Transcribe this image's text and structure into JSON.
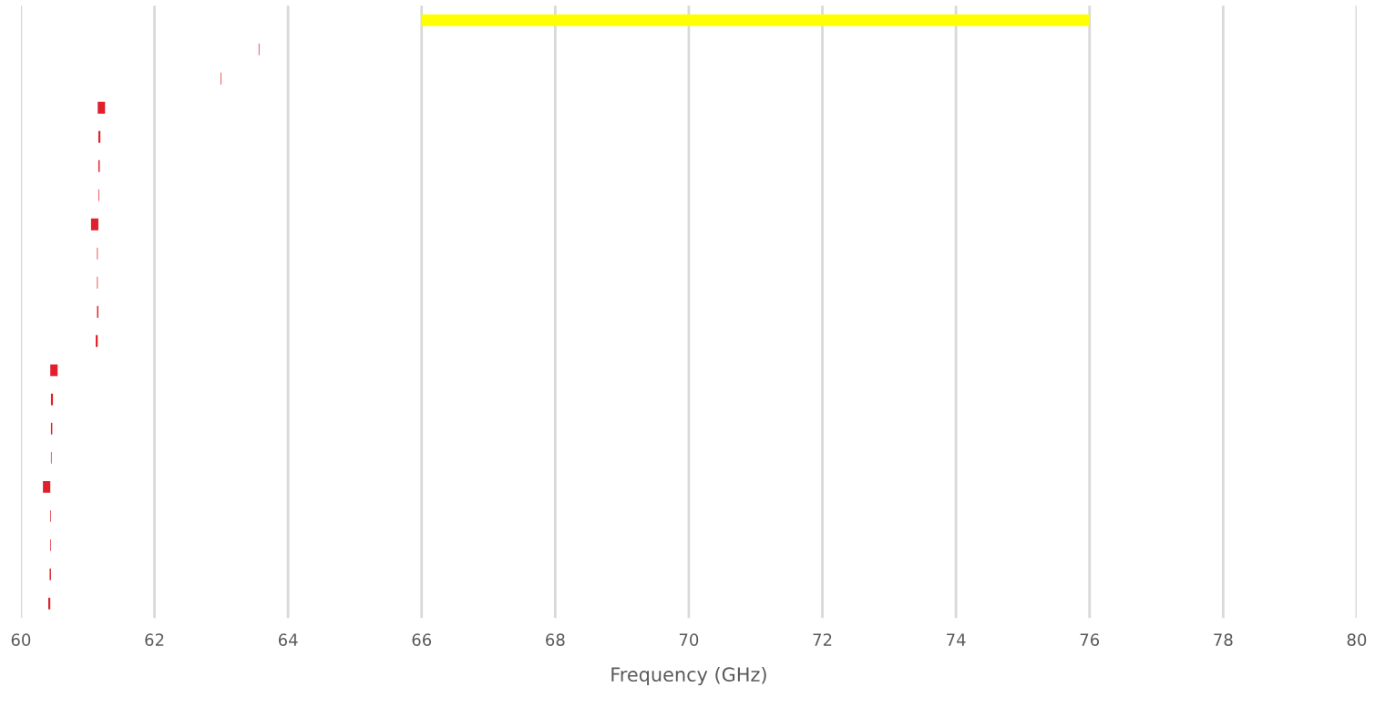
{
  "chart_data": {
    "type": "bar",
    "orientation": "horizontal",
    "xlabel": "Frequency (GHz)",
    "categories": [
      null,
      null,
      null,
      null,
      null,
      null,
      null,
      null,
      null,
      null,
      null,
      null,
      null,
      null,
      null,
      null,
      null,
      null,
      null,
      null,
      null
    ],
    "base": [
      66,
      63.56,
      62.99,
      61.15,
      61.16,
      61.16,
      61.16,
      61.05,
      61.14,
      61.14,
      61.14,
      61.12,
      60.44,
      60.45,
      60.45,
      60.45,
      60.33,
      60.44,
      60.44,
      60.43,
      60.41
    ],
    "values": [
      10,
      0.01,
      0.01,
      0.11,
      0.03,
      0.02,
      0.01,
      0.11,
      0.01,
      0.01,
      0.02,
      0.03,
      0.11,
      0.03,
      0.02,
      0.01,
      0.11,
      0.01,
      0.01,
      0.02,
      0.03
    ],
    "colors": [
      "#ffff00",
      "#e0202c",
      "#e0202c",
      "#e0202c",
      "#e0202c",
      "#e0202c",
      "#e0202c",
      "#e0202c",
      "#e0202c",
      "#e0202c",
      "#e0202c",
      "#e0202c",
      "#e0202c",
      "#e0202c",
      "#e0202c",
      "#e0202c",
      "#e0202c",
      "#e0202c",
      "#e0202c",
      "#e0202c",
      "#e0202c"
    ],
    "xlim": [
      60,
      80
    ],
    "xticks": [
      60,
      62,
      64,
      66,
      68,
      70,
      72,
      74,
      76,
      78,
      80
    ],
    "grid": "x",
    "tick_labels": "x"
  }
}
